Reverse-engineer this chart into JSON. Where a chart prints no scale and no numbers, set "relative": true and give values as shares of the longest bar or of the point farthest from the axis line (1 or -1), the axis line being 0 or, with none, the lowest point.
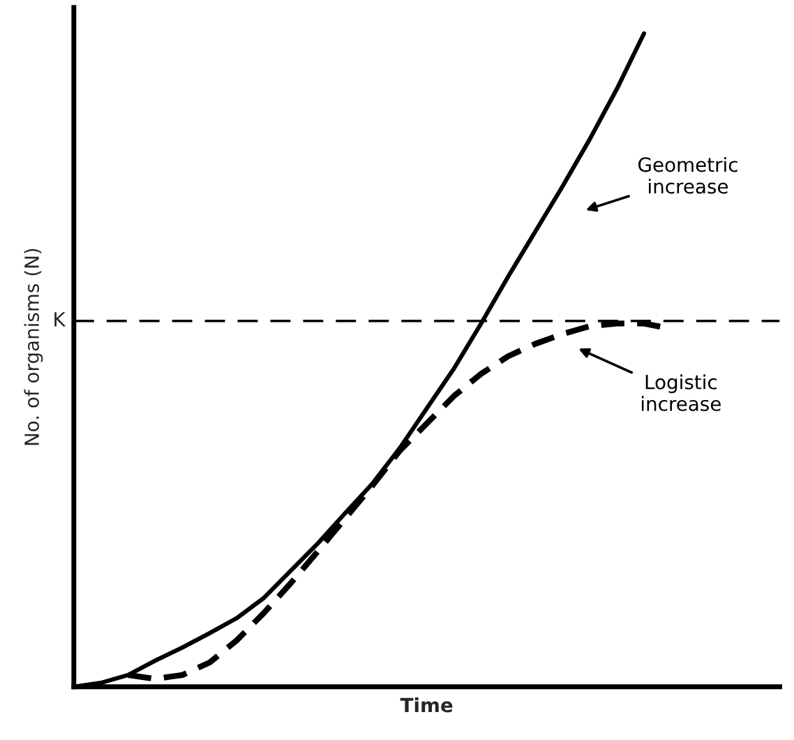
{
  "chart_data": {
    "type": "line",
    "relative": true,
    "xlabel": "Time",
    "ylabel": "No. of organisms (N)",
    "categories": [
      null,
      null,
      null,
      null,
      null,
      null,
      null,
      null,
      null,
      null,
      null,
      null,
      null,
      null,
      null,
      null,
      null,
      null,
      null,
      null,
      null,
      null,
      null,
      null,
      null,
      null,
      null
    ],
    "series": [
      {
        "name": "Geometric increase",
        "color": "#000000",
        "line_style": "solid",
        "values": [
          0,
          0.006,
          0.018,
          0.04,
          0.06,
          0.082,
          0.105,
          0.136,
          0.178,
          0.22,
          0.266,
          0.311,
          0.365,
          0.426,
          0.487,
          0.556,
          0.628,
          0.697,
          0.766,
          0.838,
          0.915,
          1.0,
          null,
          null,
          null,
          null,
          null
        ]
      },
      {
        "name": "Logistic increase",
        "color": "#000000",
        "line_style": "dashed",
        "values": [
          null,
          null,
          0.018,
          0.012,
          0.018,
          0.037,
          0.071,
          0.113,
          0.159,
          0.208,
          0.258,
          0.308,
          0.361,
          0.403,
          0.445,
          0.479,
          0.506,
          0.525,
          0.54,
          0.552,
          0.556,
          0.556,
          0.548,
          null,
          null,
          null,
          null
        ]
      }
    ],
    "ref_lines": [
      {
        "axis": "y",
        "value": 0.56,
        "label": "K",
        "color": "#000000",
        "line_style": "dashed"
      }
    ],
    "legend": false,
    "grid": false
  }
}
